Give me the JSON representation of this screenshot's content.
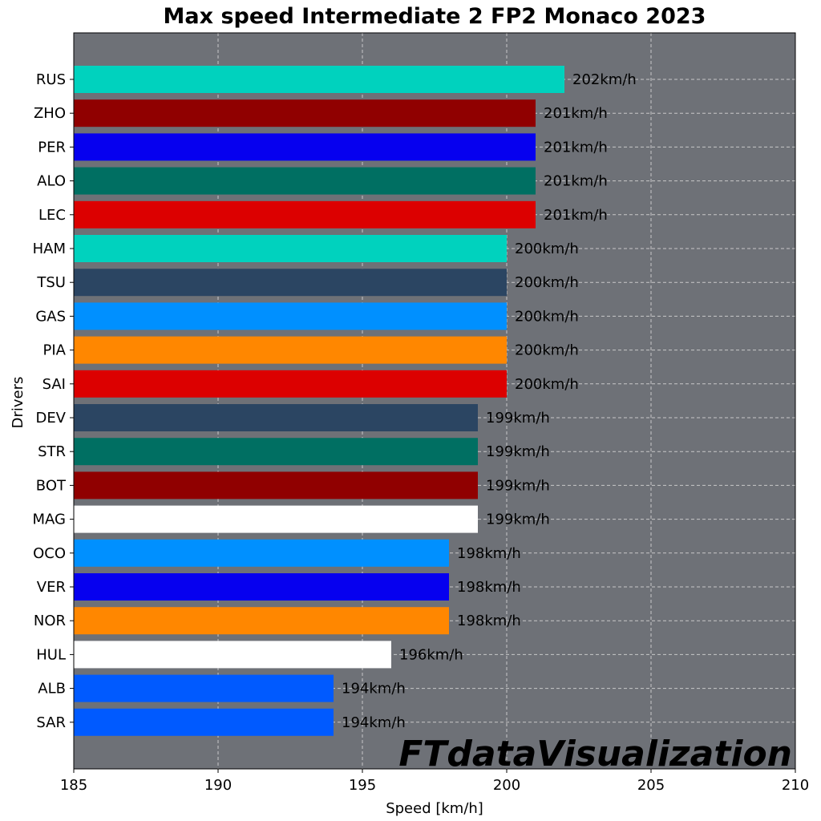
{
  "chart_data": {
    "type": "bar",
    "orientation": "horizontal",
    "title": "Max speed Intermediate 2 FP2 Monaco 2023",
    "xlabel": "Speed [km/h]",
    "ylabel": "Drivers",
    "xlim": [
      185,
      210
    ],
    "xticks": [
      "185",
      "190",
      "195",
      "200",
      "205",
      "210"
    ],
    "grid": true,
    "value_suffix": "km/h",
    "categories": [
      "RUS",
      "ZHO",
      "PER",
      "ALO",
      "LEC",
      "HAM",
      "TSU",
      "GAS",
      "PIA",
      "SAI",
      "DEV",
      "STR",
      "BOT",
      "MAG",
      "OCO",
      "VER",
      "NOR",
      "HUL",
      "ALB",
      "SAR"
    ],
    "values": [
      202,
      201,
      201,
      201,
      201,
      200,
      200,
      200,
      200,
      200,
      199,
      199,
      199,
      199,
      198,
      198,
      198,
      196,
      194,
      194
    ],
    "value_labels": [
      "202km/h",
      "201km/h",
      "201km/h",
      "201km/h",
      "201km/h",
      "200km/h",
      "200km/h",
      "200km/h",
      "200km/h",
      "200km/h",
      "199km/h",
      "199km/h",
      "199km/h",
      "199km/h",
      "198km/h",
      "198km/h",
      "198km/h",
      "196km/h",
      "194km/h",
      "194km/h"
    ],
    "colors": [
      "#00D2BE",
      "#900000",
      "#0600EF",
      "#006F62",
      "#DC0000",
      "#00D2BE",
      "#2B4562",
      "#0090FF",
      "#FF8700",
      "#DC0000",
      "#2B4562",
      "#006F62",
      "#900000",
      "#FFFFFF",
      "#0090FF",
      "#0600EF",
      "#FF8700",
      "#FFFFFF",
      "#005AFF",
      "#005AFF"
    ],
    "background_color": "#6E7177",
    "watermark": "FTdataVisualization"
  }
}
